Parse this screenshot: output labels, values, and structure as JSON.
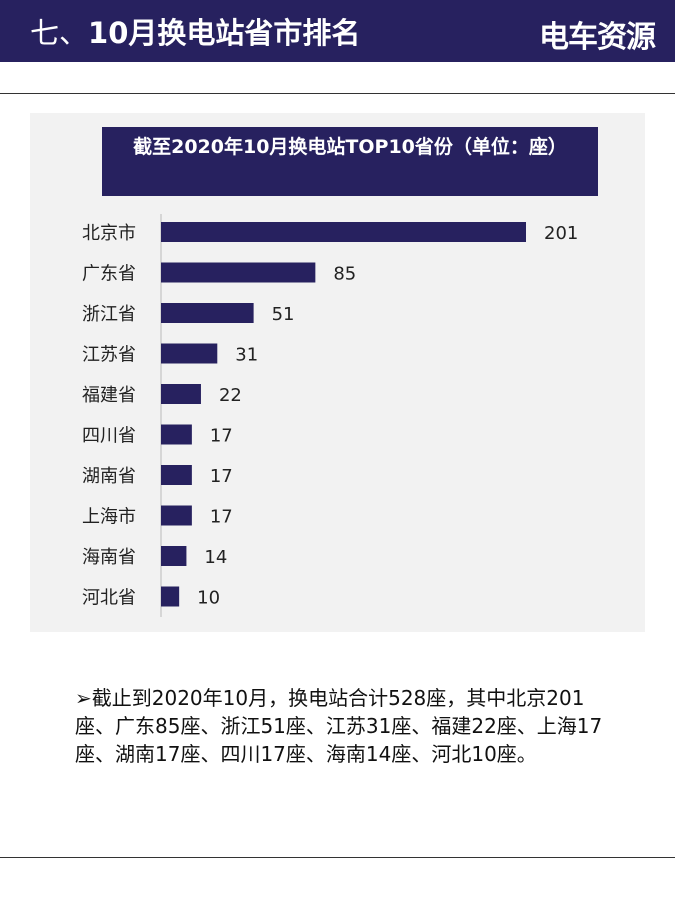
{
  "header": {
    "prefix": "七、",
    "title": "10月换电站省市排名",
    "logo": "电车资源"
  },
  "chart_data": {
    "type": "bar",
    "orientation": "horizontal",
    "title": "截至2020年10月换电站TOP10省份（单位：座）",
    "categories": [
      "北京市",
      "广东省",
      "浙江省",
      "江苏省",
      "福建省",
      "四川省",
      "湖南省",
      "上海市",
      "海南省",
      "河北省"
    ],
    "values": [
      201,
      85,
      51,
      31,
      22,
      17,
      17,
      17,
      14,
      10
    ],
    "bar_color": "#27215f",
    "data_labels": true,
    "grid": false
  },
  "summary": "➢截止到2020年10月，换电站合计528座，其中北京201座、广东85座、浙江51座、江苏31座、福建22座、上海17座、湖南17座、四川17座、海南14座、河北10座。"
}
